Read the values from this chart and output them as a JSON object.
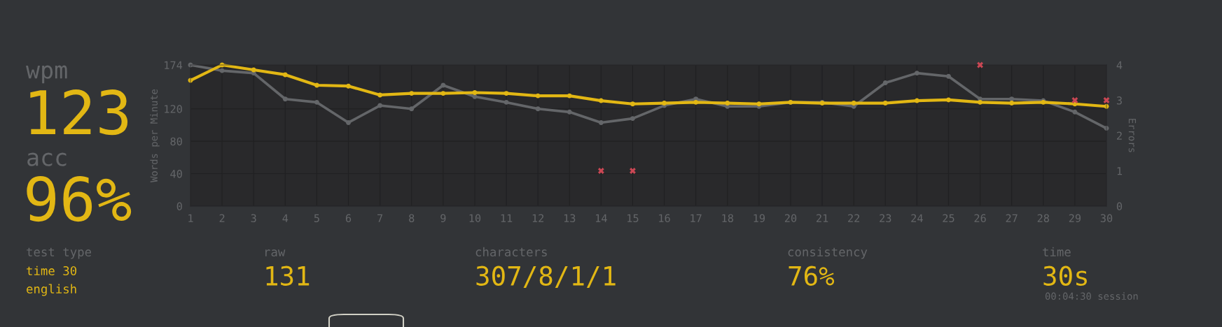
{
  "chart_data": [
    {
      "type": "line",
      "categories": [
        "1",
        "2",
        "3",
        "4",
        "5",
        "6",
        "7",
        "8",
        "9",
        "10",
        "11",
        "12",
        "13",
        "14",
        "15",
        "16",
        "17",
        "18",
        "19",
        "20",
        "21",
        "22",
        "23",
        "24",
        "25",
        "26",
        "27",
        "28",
        "29",
        "30"
      ],
      "series": [
        {
          "color": "#646669",
          "values": [
            174,
            167,
            164,
            132,
            128,
            103,
            124,
            120,
            149,
            135,
            128,
            120,
            116,
            103,
            108,
            124,
            132,
            123,
            123,
            128,
            128,
            123,
            152,
            164,
            160,
            132,
            132,
            130,
            116,
            96
          ]
        },
        {
          "color": "#e2b714",
          "values": [
            155,
            174,
            168,
            162,
            149,
            148,
            137,
            139,
            139,
            140,
            139,
            136,
            136,
            130,
            126,
            127,
            128,
            127,
            126,
            128,
            127,
            127,
            127,
            130,
            131,
            128,
            127,
            128,
            126,
            123
          ]
        },
        {
          "type": "scatter",
          "axis": "y2",
          "marker": "cross",
          "color": "#ca4754",
          "x": [
            "14",
            "15",
            "26",
            "29",
            "30"
          ],
          "values": [
            1,
            1,
            4,
            3,
            3
          ]
        }
      ],
      "marker": "circle",
      "line_style": "solid",
      "ylabel": "Words per Minute",
      "y2label": "Errors",
      "ylim": [
        0,
        174
      ],
      "yticks": [
        0,
        40,
        80,
        120,
        174
      ],
      "y2lim": [
        0,
        4
      ],
      "y2ticks": [
        0,
        1,
        2,
        3,
        4
      ],
      "grid": true
    },
    {
      "type": "other",
      "annotations": [
        "wpm",
        "123",
        "acc",
        "96%",
        "test type",
        "time 30",
        "english",
        "raw",
        "131",
        "characters",
        "307/8/1/1",
        "consistency",
        "76%",
        "time",
        "30s",
        "00:04:30 session"
      ]
    }
  ]
}
